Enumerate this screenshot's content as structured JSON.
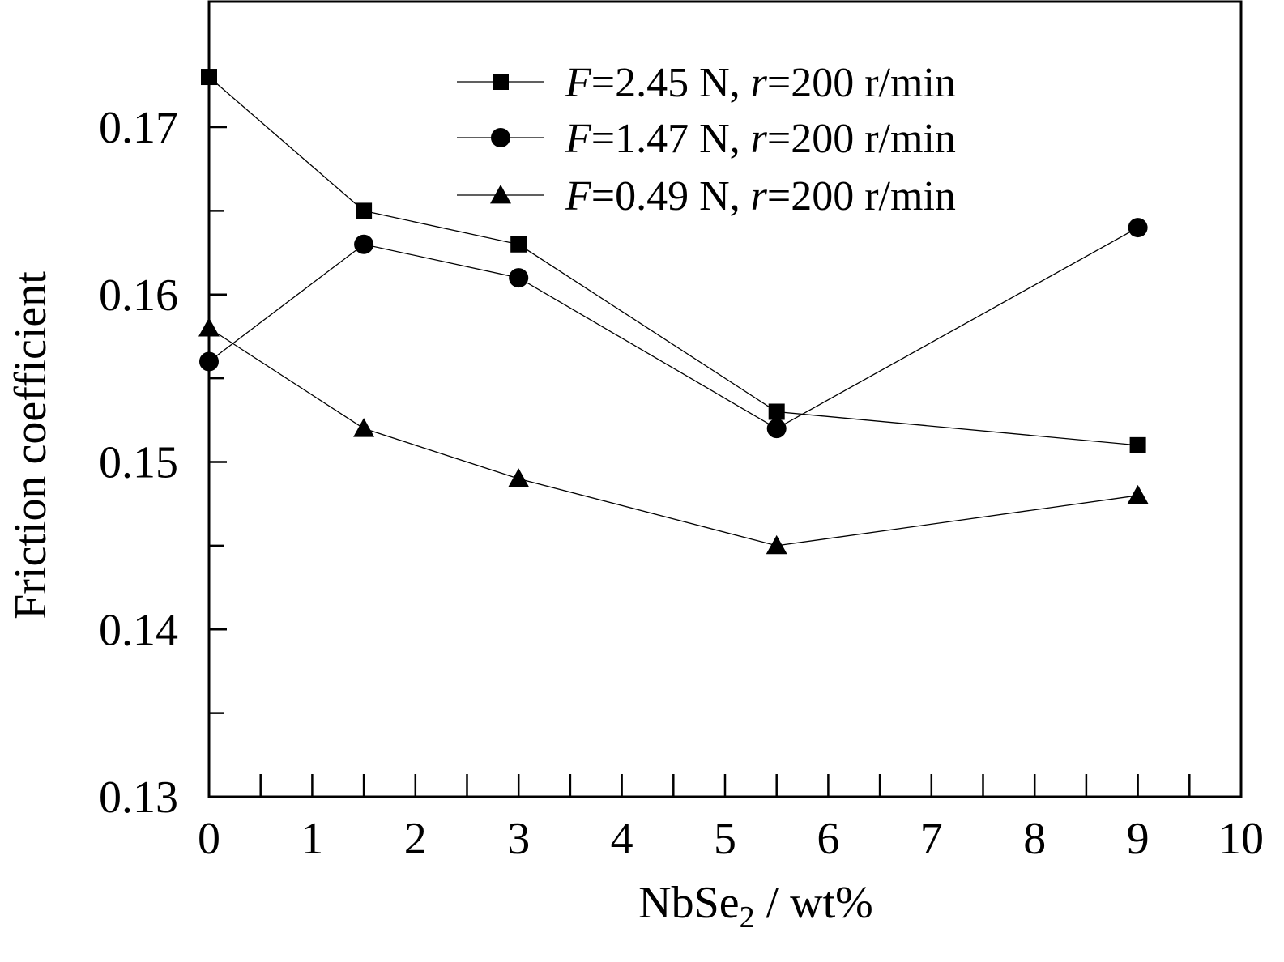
{
  "chart_data": {
    "type": "line",
    "xlabel": {
      "main": "NbSe",
      "sub": "2",
      "tail": " / wt%"
    },
    "ylabel": "Friction coefficient",
    "xlim": [
      0,
      10
    ],
    "ylim": [
      0.13,
      0.1775
    ],
    "x_major_ticks": [
      0,
      1,
      2,
      3,
      4,
      5,
      6,
      7,
      8,
      9,
      10
    ],
    "x_tick_labels": [
      "0",
      "1",
      "2",
      "3",
      "4",
      "5",
      "6",
      "7",
      "8",
      "9",
      "10"
    ],
    "x_minor_ticks": [
      0.5,
      1.5,
      2.5,
      3.5,
      4.5,
      5.5,
      6.5,
      7.5,
      8.5,
      9.5
    ],
    "y_major_ticks": [
      0.13,
      0.14,
      0.15,
      0.16,
      0.17
    ],
    "y_tick_labels": [
      "0.13",
      "0.14",
      "0.15",
      "0.16",
      "0.17"
    ],
    "y_minor_ticks": [
      0.135,
      0.145,
      0.155,
      0.165
    ],
    "grid": false,
    "legend_position": "top-right",
    "series": [
      {
        "name_parts": [
          "F",
          "=2.45 N, ",
          "r",
          "=200 r/min"
        ],
        "marker": "square",
        "x": [
          0,
          1.5,
          3,
          5.5,
          9
        ],
        "y": [
          0.173,
          0.165,
          0.163,
          0.153,
          0.151
        ]
      },
      {
        "name_parts": [
          "F",
          "=1.47 N, ",
          "r",
          "=200 r/min"
        ],
        "marker": "circle",
        "x": [
          0,
          1.5,
          3,
          5.5,
          9
        ],
        "y": [
          0.156,
          0.163,
          0.161,
          0.152,
          0.164
        ]
      },
      {
        "name_parts": [
          "F",
          "=0.49 N, ",
          "r",
          "=200 r/min"
        ],
        "marker": "triangle",
        "x": [
          0,
          1.5,
          3,
          5.5,
          9
        ],
        "y": [
          0.158,
          0.152,
          0.149,
          0.145,
          0.148
        ]
      }
    ],
    "colors": {
      "line": "#000000",
      "marker": "#000000",
      "background": "#ffffff"
    }
  }
}
